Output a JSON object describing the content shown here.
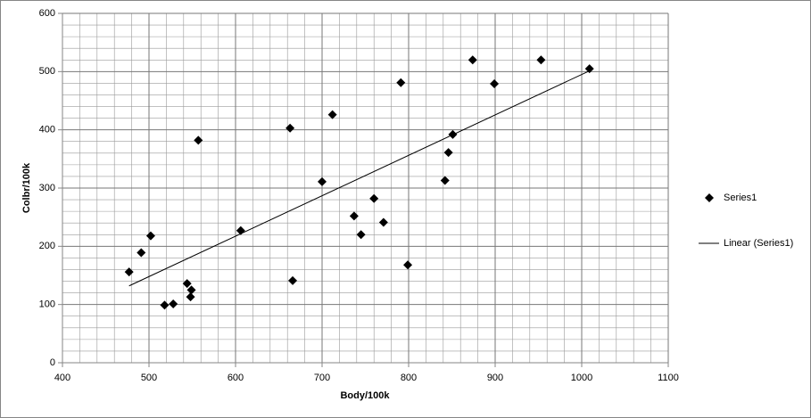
{
  "chart_data": {
    "type": "scatter",
    "xlabel": "Body/100k",
    "ylabel": "Colbr/100k",
    "xlim": [
      400,
      1100
    ],
    "xticks": [
      400,
      500,
      600,
      700,
      800,
      900,
      1000,
      1100
    ],
    "ylim": [
      0,
      600
    ],
    "yticks": [
      0,
      100,
      200,
      300,
      400,
      500,
      600
    ],
    "grid": true,
    "minor_grid": true,
    "legend": "right",
    "series": [
      {
        "name": "Series1",
        "color": "#000000",
        "marker": "diamond",
        "x": [
          477,
          491,
          502,
          518,
          528,
          544,
          548,
          549,
          557,
          606,
          663,
          666,
          700,
          712,
          737,
          745,
          760,
          771,
          791,
          799,
          842,
          846,
          851,
          874,
          899,
          953,
          1009
        ],
        "values": [
          156,
          189,
          218,
          99,
          101,
          136,
          113,
          125,
          382,
          227,
          403,
          141,
          311,
          426,
          252,
          220,
          282,
          241,
          481,
          168,
          313,
          361,
          392,
          520,
          479,
          520,
          505
        ]
      },
      {
        "name": "Linear (Series1)",
        "color": "#000000",
        "marker": "line",
        "x": [
          477,
          1010
        ],
        "values": [
          132,
          502
        ]
      }
    ]
  }
}
